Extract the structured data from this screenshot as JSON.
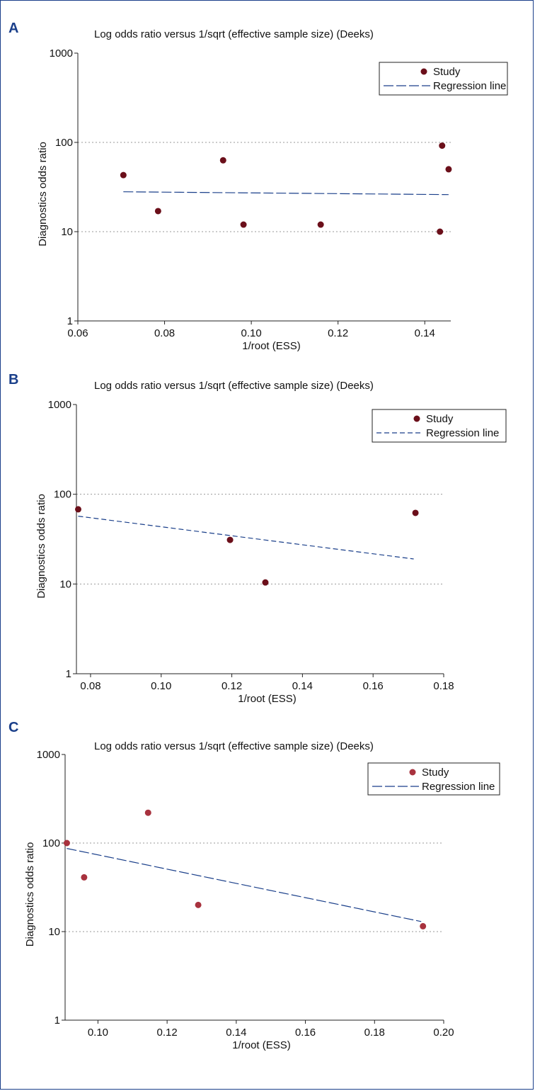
{
  "chart_data": [
    {
      "panel": "A",
      "type": "scatter",
      "title": "Log odds ratio versus 1/sqrt (effective sample size) (Deeks)",
      "xlabel": "1/root (ESS)",
      "ylabel": "Diagnostics odds ratio",
      "xlim": [
        0.06,
        0.146
      ],
      "x_ticks": [
        "0.06",
        "0.08",
        "0.10",
        "0.12",
        "0.14"
      ],
      "y_scale": "log",
      "ylim": [
        1,
        1000
      ],
      "y_ticks": [
        "1",
        "10",
        "100",
        "1000"
      ],
      "grid": "horizontal dotted at 10 and 100",
      "legend": {
        "position": "top-right",
        "entries": [
          "Study",
          "Regression line"
        ]
      },
      "series": [
        {
          "name": "Study",
          "kind": "points",
          "color": "#6b0f1a",
          "points": [
            [
              0.0705,
              43
            ],
            [
              0.0785,
              17
            ],
            [
              0.0935,
              63
            ],
            [
              0.0982,
              12
            ],
            [
              0.116,
              12
            ],
            [
              0.1435,
              10
            ],
            [
              0.144,
              92
            ],
            [
              0.1455,
              50
            ]
          ]
        },
        {
          "name": "Regression line",
          "kind": "line",
          "color": "#1a3f8a",
          "dash": "long",
          "points": [
            [
              0.0705,
              28
            ],
            [
              0.1455,
              26
            ]
          ]
        }
      ]
    },
    {
      "panel": "B",
      "type": "scatter",
      "title": "Log odds ratio versus 1/sqrt (effective sample size) (Deeks)",
      "xlabel": "1/root (ESS)",
      "ylabel": "Diagnostics odds ratio",
      "xlim": [
        0.076,
        0.18
      ],
      "x_ticks": [
        "0.08",
        "0.10",
        "0.12",
        "0.14",
        "0.16",
        "0.18"
      ],
      "y_scale": "log",
      "ylim": [
        1,
        1000
      ],
      "y_ticks": [
        "1",
        "10",
        "100",
        "1000"
      ],
      "grid": "horizontal dotted at 10 and 100",
      "legend": {
        "position": "top-right",
        "entries": [
          "Study",
          "Regression line"
        ]
      },
      "series": [
        {
          "name": "Study",
          "kind": "points",
          "color": "#6b0f1a",
          "points": [
            [
              0.0765,
              68
            ],
            [
              0.1195,
              31
            ],
            [
              0.1295,
              10.4
            ],
            [
              0.172,
              62
            ]
          ]
        },
        {
          "name": "Regression line",
          "kind": "line",
          "color": "#1a3f8a",
          "dash": "short",
          "points": [
            [
              0.0765,
              57
            ],
            [
              0.1715,
              19
            ]
          ]
        }
      ]
    },
    {
      "panel": "C",
      "type": "scatter",
      "title": "Log odds ratio versus 1/sqrt (effective sample size) (Deeks)",
      "xlabel": "1/root (ESS)",
      "ylabel": "Diagnostics odds ratio",
      "xlim": [
        0.0905,
        0.2
      ],
      "x_ticks": [
        "0.10",
        "0.12",
        "0.14",
        "0.16",
        "0.18",
        "0.20"
      ],
      "y_scale": "log",
      "ylim": [
        1,
        1000
      ],
      "y_ticks": [
        "1",
        "10",
        "100",
        "1000"
      ],
      "grid": "horizontal dotted at 10 and 100",
      "legend": {
        "position": "top-right",
        "entries": [
          "Study",
          "Regression line"
        ]
      },
      "series": [
        {
          "name": "Study",
          "kind": "points",
          "color": "#a8323e",
          "points": [
            [
              0.091,
              100
            ],
            [
              0.096,
              41
            ],
            [
              0.1145,
              220
            ],
            [
              0.129,
              20
            ],
            [
              0.194,
              11.5
            ]
          ]
        },
        {
          "name": "Regression line",
          "kind": "line",
          "color": "#1a3f8a",
          "dash": "long",
          "points": [
            [
              0.091,
              87
            ],
            [
              0.1935,
              13
            ]
          ]
        }
      ]
    }
  ]
}
